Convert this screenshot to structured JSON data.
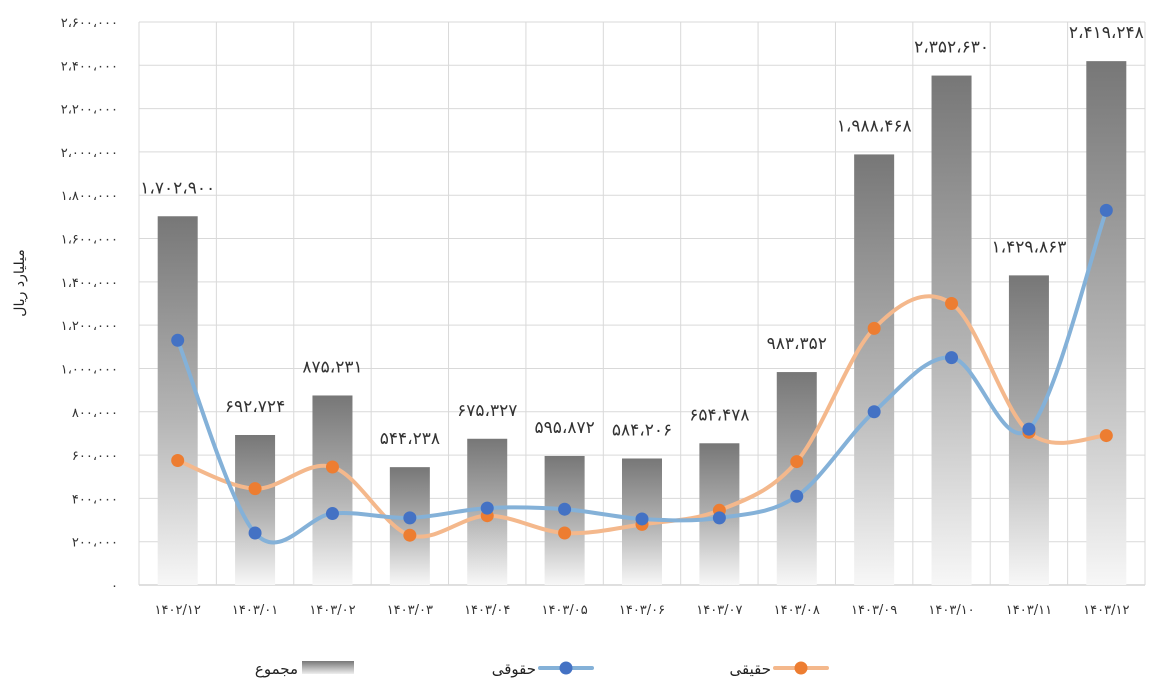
{
  "chart_data": {
    "type": "bar",
    "title": "",
    "ylabel": "میلیارد ریال",
    "xlabel": "",
    "ylim": [
      0,
      2600000
    ],
    "y_step": 200000,
    "y_tick_labels": [
      "۰",
      "۲۰۰،۰۰۰",
      "۴۰۰،۰۰۰",
      "۶۰۰،۰۰۰",
      "۸۰۰،۰۰۰",
      "۱،۰۰۰،۰۰۰",
      "۱،۲۰۰،۰۰۰",
      "۱،۴۰۰،۰۰۰",
      "۱،۶۰۰،۰۰۰",
      "۱،۸۰۰،۰۰۰",
      "۲،۰۰۰،۰۰۰",
      "۲،۲۰۰،۰۰۰",
      "۲،۴۰۰،۰۰۰",
      "۲،۶۰۰،۰۰۰"
    ],
    "categories": [
      "۱۴۰۲/۱۲",
      "۱۴۰۳/۰۱",
      "۱۴۰۳/۰۲",
      "۱۴۰۳/۰۳",
      "۱۴۰۳/۰۴",
      "۱۴۰۳/۰۵",
      "۱۴۰۳/۰۶",
      "۱۴۰۳/۰۷",
      "۱۴۰۳/۰۸",
      "۱۴۰۳/۰۹",
      "۱۴۰۳/۱۰",
      "۱۴۰۳/۱۱",
      "۱۴۰۳/۱۲"
    ],
    "grid": true,
    "legend_position": "bottom",
    "series": [
      {
        "name": "مجموع",
        "kind": "bar",
        "values": [
          1702900,
          692724,
          875231,
          544238,
          675327,
          595872,
          584206,
          654478,
          983352,
          1988468,
          2352630,
          1429863,
          2419248
        ],
        "labels": [
          "۱،۷۰۲،۹۰۰",
          "۶۹۲،۷۲۴",
          "۸۷۵،۲۳۱",
          "۵۴۴،۲۳۸",
          "۶۷۵،۳۲۷",
          "۵۹۵،۸۷۲",
          "۵۸۴،۲۰۶",
          "۶۵۴،۴۷۸",
          "۹۸۳،۳۵۲",
          "۱،۹۸۸،۴۶۸",
          "۲،۳۵۲،۶۳۰",
          "۱،۴۲۹،۸۶۳",
          "۲،۴۱۹،۲۴۸"
        ],
        "color": "#7f7f7f"
      },
      {
        "name": "حقوقی",
        "kind": "line",
        "values": [
          1130000,
          240000,
          330000,
          310000,
          355000,
          350000,
          305000,
          310000,
          410000,
          800000,
          1050000,
          720000,
          1730000
        ],
        "color": "#4472c4",
        "line_color": "#84b1d8"
      },
      {
        "name": "حقیقی",
        "kind": "line",
        "values": [
          575000,
          445000,
          545000,
          230000,
          320000,
          240000,
          280000,
          345000,
          570000,
          1185000,
          1300000,
          705000,
          690000
        ],
        "color": "#ed7d31",
        "line_color": "#f4b88c"
      }
    ]
  }
}
